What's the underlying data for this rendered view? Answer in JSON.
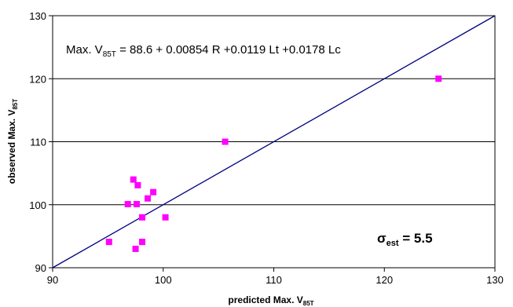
{
  "chart_data": {
    "type": "scatter",
    "xlim": [
      90,
      130
    ],
    "ylim": [
      90,
      130
    ],
    "x_ticks": [
      "90",
      "100",
      "110",
      "120",
      "130"
    ],
    "y_ticks": [
      "90",
      "100",
      "110",
      "120",
      "130"
    ],
    "xlabel": {
      "main": "predicted Max. V",
      "sub": "85T"
    },
    "ylabel": {
      "main": "observed Max. V",
      "sub": "85T"
    },
    "grid": "horizontal",
    "marker_color": "#ff00ff",
    "line_color": "#000080",
    "reference_line": {
      "from": [
        90,
        90
      ],
      "to": [
        130,
        130
      ]
    },
    "points": [
      {
        "x": 95.1,
        "y": 94.1
      },
      {
        "x": 96.8,
        "y": 100.1
      },
      {
        "x": 97.3,
        "y": 104.0
      },
      {
        "x": 97.5,
        "y": 93.0
      },
      {
        "x": 97.6,
        "y": 100.1
      },
      {
        "x": 97.7,
        "y": 103.1
      },
      {
        "x": 98.1,
        "y": 98.0
      },
      {
        "x": 98.1,
        "y": 94.1
      },
      {
        "x": 98.6,
        "y": 101.0
      },
      {
        "x": 99.1,
        "y": 102.0
      },
      {
        "x": 100.2,
        "y": 98.0
      },
      {
        "x": 105.6,
        "y": 110.0
      },
      {
        "x": 124.9,
        "y": 120.0
      }
    ],
    "equation": {
      "pre": "Max. V",
      "sub": "85T",
      "post": " = 88.6 + 0.00854 R +0.0119 Lt +0.0178 Lc"
    },
    "sigma": {
      "symbol": "σ",
      "sub": "est",
      "post": " = 5.5"
    }
  }
}
